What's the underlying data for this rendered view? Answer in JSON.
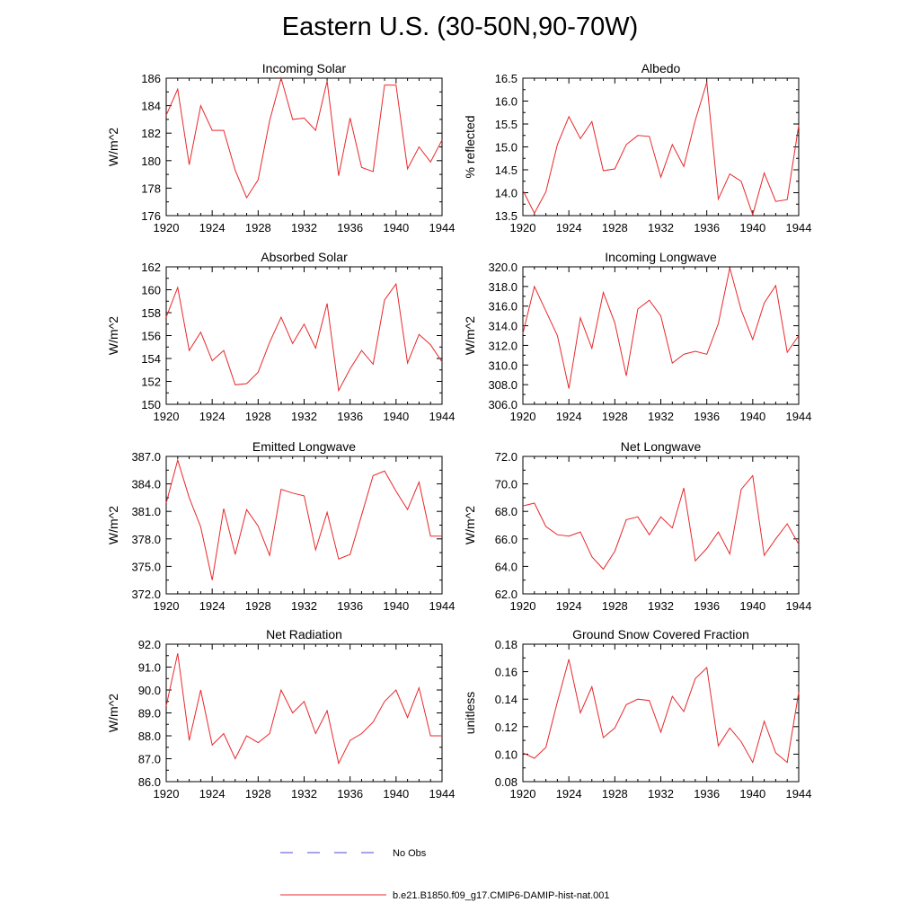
{
  "title": "Eastern U.S. (30-50N,90-70W)",
  "legend": [
    {
      "label": "No Obs",
      "color": "#4b4bd6",
      "style": "dashed"
    },
    {
      "label": "b.e21.B1850.f09_g17.CMIP6-DAMIP-hist-nat.001",
      "color": "#e8282b",
      "style": "solid"
    }
  ],
  "chart_data": [
    {
      "type": "line",
      "title": "Incoming Solar",
      "ylabel": "W/m^2",
      "xlim": [
        1920,
        1944
      ],
      "xticks": [
        "1920",
        "1924",
        "1928",
        "1932",
        "1936",
        "1940",
        "1944"
      ],
      "ylim": [
        176,
        186
      ],
      "yticks": [
        "176",
        "178",
        "180",
        "182",
        "184",
        "186"
      ],
      "x": [
        1920,
        1921,
        1922,
        1923,
        1924,
        1925,
        1926,
        1927,
        1928,
        1929,
        1930,
        1931,
        1932,
        1933,
        1934,
        1935,
        1936,
        1937,
        1938,
        1939,
        1940,
        1941,
        1942,
        1943,
        1944
      ],
      "series": [
        {
          "name": "b.e21.B1850.f09_g17.CMIP6-DAMIP-hist-nat.001",
          "color": "#e8282b",
          "values": [
            183.3,
            185.2,
            179.7,
            184.0,
            182.2,
            182.2,
            179.3,
            177.3,
            178.6,
            182.9,
            186.0,
            183.0,
            183.1,
            182.2,
            185.8,
            178.9,
            183.1,
            179.5,
            179.2,
            185.5,
            185.5,
            179.4,
            181.0,
            179.9,
            181.5
          ]
        }
      ]
    },
    {
      "type": "line",
      "title": "Albedo",
      "ylabel": "% reflected",
      "xlim": [
        1920,
        1944
      ],
      "xticks": [
        "1920",
        "1924",
        "1928",
        "1932",
        "1936",
        "1940",
        "1944"
      ],
      "ylim": [
        13.5,
        16.5
      ],
      "yticks": [
        "13.5",
        "14.0",
        "14.5",
        "15.0",
        "15.5",
        "16.0",
        "16.5"
      ],
      "x": [
        1920,
        1921,
        1922,
        1923,
        1924,
        1925,
        1926,
        1927,
        1928,
        1929,
        1930,
        1931,
        1932,
        1933,
        1934,
        1935,
        1936,
        1937,
        1938,
        1939,
        1940,
        1941,
        1942,
        1943,
        1944
      ],
      "series": [
        {
          "name": "b.e21.B1850.f09_g17.CMIP6-DAMIP-hist-nat.001",
          "color": "#e8282b",
          "values": [
            14.05,
            13.55,
            14.02,
            15.05,
            15.66,
            15.18,
            15.55,
            14.48,
            14.52,
            15.05,
            15.25,
            15.23,
            14.34,
            15.05,
            14.57,
            15.58,
            16.41,
            13.86,
            14.41,
            14.25,
            13.52,
            14.43,
            13.81,
            13.85,
            15.47
          ]
        }
      ]
    },
    {
      "type": "line",
      "title": "Absorbed Solar",
      "ylabel": "W/m^2",
      "xlim": [
        1920,
        1944
      ],
      "xticks": [
        "1920",
        "1924",
        "1928",
        "1932",
        "1936",
        "1940",
        "1944"
      ],
      "ylim": [
        150,
        162
      ],
      "yticks": [
        "150",
        "152",
        "154",
        "156",
        "158",
        "160",
        "162"
      ],
      "x": [
        1920,
        1921,
        1922,
        1923,
        1924,
        1925,
        1926,
        1927,
        1928,
        1929,
        1930,
        1931,
        1932,
        1933,
        1934,
        1935,
        1936,
        1937,
        1938,
        1939,
        1940,
        1941,
        1942,
        1943,
        1944
      ],
      "series": [
        {
          "name": "b.e21.B1850.f09_g17.CMIP6-DAMIP-hist-nat.001",
          "color": "#e8282b",
          "values": [
            157.6,
            160.2,
            154.7,
            156.3,
            153.8,
            154.7,
            151.7,
            151.8,
            152.8,
            155.4,
            157.6,
            155.3,
            157.0,
            154.9,
            158.8,
            151.2,
            153.1,
            154.7,
            153.5,
            159.1,
            160.5,
            153.6,
            156.1,
            155.2,
            153.7
          ]
        }
      ]
    },
    {
      "type": "line",
      "title": "Incoming Longwave",
      "ylabel": "W/m^2",
      "xlim": [
        1920,
        1944
      ],
      "xticks": [
        "1920",
        "1924",
        "1928",
        "1932",
        "1936",
        "1940",
        "1944"
      ],
      "ylim": [
        306.0,
        320.0
      ],
      "yticks": [
        "306.0",
        "308.0",
        "310.0",
        "312.0",
        "314.0",
        "316.0",
        "318.0",
        "320.0"
      ],
      "x": [
        1920,
        1921,
        1922,
        1923,
        1924,
        1925,
        1926,
        1927,
        1928,
        1929,
        1930,
        1931,
        1932,
        1933,
        1934,
        1935,
        1936,
        1937,
        1938,
        1939,
        1940,
        1941,
        1942,
        1943,
        1944
      ],
      "series": [
        {
          "name": "b.e21.B1850.f09_g17.CMIP6-DAMIP-hist-nat.001",
          "color": "#e8282b",
          "values": [
            313.2,
            318.0,
            315.5,
            313.0,
            307.6,
            314.8,
            311.7,
            317.4,
            314.3,
            308.9,
            315.7,
            316.6,
            315.0,
            310.2,
            311.1,
            311.4,
            311.1,
            314.2,
            319.9,
            315.6,
            312.6,
            316.3,
            318.1,
            311.3,
            313.0
          ]
        }
      ]
    },
    {
      "type": "line",
      "title": "Emitted Longwave",
      "ylabel": "W/m^2",
      "xlim": [
        1920,
        1944
      ],
      "xticks": [
        "1920",
        "1924",
        "1928",
        "1932",
        "1936",
        "1940",
        "1944"
      ],
      "ylim": [
        372.0,
        387.0
      ],
      "yticks": [
        "372.0",
        "375.0",
        "378.0",
        "381.0",
        "384.0",
        "387.0"
      ],
      "x": [
        1920,
        1921,
        1922,
        1923,
        1924,
        1925,
        1926,
        1927,
        1928,
        1929,
        1930,
        1931,
        1932,
        1933,
        1934,
        1935,
        1936,
        1937,
        1938,
        1939,
        1940,
        1941,
        1942,
        1943,
        1944
      ],
      "series": [
        {
          "name": "b.e21.B1850.f09_g17.CMIP6-DAMIP-hist-nat.001",
          "color": "#e8282b",
          "values": [
            381.9,
            386.6,
            382.5,
            379.3,
            373.5,
            381.3,
            376.3,
            381.2,
            379.4,
            376.2,
            383.4,
            383.0,
            382.7,
            376.8,
            380.9,
            375.8,
            376.3,
            380.6,
            384.9,
            385.4,
            383.2,
            381.2,
            384.2,
            378.3,
            378.3
          ]
        }
      ]
    },
    {
      "type": "line",
      "title": "Net Longwave",
      "ylabel": "W/m^2",
      "xlim": [
        1920,
        1944
      ],
      "xticks": [
        "1920",
        "1924",
        "1928",
        "1932",
        "1936",
        "1940",
        "1944"
      ],
      "ylim": [
        62.0,
        72.0
      ],
      "yticks": [
        "62.0",
        "64.0",
        "66.0",
        "68.0",
        "70.0",
        "72.0"
      ],
      "x": [
        1920,
        1921,
        1922,
        1923,
        1924,
        1925,
        1926,
        1927,
        1928,
        1929,
        1930,
        1931,
        1932,
        1933,
        1934,
        1935,
        1936,
        1937,
        1938,
        1939,
        1940,
        1941,
        1942,
        1943,
        1944
      ],
      "series": [
        {
          "name": "b.e21.B1850.f09_g17.CMIP6-DAMIP-hist-nat.001",
          "color": "#e8282b",
          "values": [
            68.4,
            68.6,
            66.9,
            66.3,
            66.2,
            66.5,
            64.7,
            63.8,
            65.1,
            67.4,
            67.6,
            66.3,
            67.6,
            66.8,
            69.7,
            64.4,
            65.3,
            66.5,
            64.9,
            69.6,
            70.6,
            64.8,
            66.0,
            67.1,
            65.6
          ]
        }
      ]
    },
    {
      "type": "line",
      "title": "Net Radiation",
      "ylabel": "W/m^2",
      "xlim": [
        1920,
        1944
      ],
      "xticks": [
        "1920",
        "1924",
        "1928",
        "1932",
        "1936",
        "1940",
        "1944"
      ],
      "ylim": [
        86.0,
        92.0
      ],
      "yticks": [
        "86.0",
        "87.0",
        "88.0",
        "89.0",
        "90.0",
        "91.0",
        "92.0"
      ],
      "x": [
        1920,
        1921,
        1922,
        1923,
        1924,
        1925,
        1926,
        1927,
        1928,
        1929,
        1930,
        1931,
        1932,
        1933,
        1934,
        1935,
        1936,
        1937,
        1938,
        1939,
        1940,
        1941,
        1942,
        1943,
        1944
      ],
      "series": [
        {
          "name": "b.e21.B1850.f09_g17.CMIP6-DAMIP-hist-nat.001",
          "color": "#e8282b",
          "values": [
            89.3,
            91.6,
            87.8,
            90.0,
            87.6,
            88.1,
            87.0,
            88.0,
            87.7,
            88.1,
            90.0,
            89.0,
            89.5,
            88.1,
            89.1,
            86.8,
            87.8,
            88.1,
            88.6,
            89.5,
            90.0,
            88.8,
            90.1,
            88.0,
            88.0
          ]
        }
      ]
    },
    {
      "type": "line",
      "title": "Ground Snow Covered Fraction",
      "ylabel": "unitless",
      "xlim": [
        1920,
        1944
      ],
      "xticks": [
        "1920",
        "1924",
        "1928",
        "1932",
        "1936",
        "1940",
        "1944"
      ],
      "ylim": [
        0.08,
        0.18
      ],
      "yticks": [
        "0.08",
        "0.10",
        "0.12",
        "0.14",
        "0.16",
        "0.18"
      ],
      "x": [
        1920,
        1921,
        1922,
        1923,
        1924,
        1925,
        1926,
        1927,
        1928,
        1929,
        1930,
        1931,
        1932,
        1933,
        1934,
        1935,
        1936,
        1937,
        1938,
        1939,
        1940,
        1941,
        1942,
        1943,
        1944
      ],
      "series": [
        {
          "name": "b.e21.B1850.f09_g17.CMIP6-DAMIP-hist-nat.001",
          "color": "#e8282b",
          "values": [
            0.101,
            0.097,
            0.105,
            0.138,
            0.169,
            0.13,
            0.149,
            0.112,
            0.119,
            0.136,
            0.14,
            0.139,
            0.116,
            0.142,
            0.131,
            0.155,
            0.163,
            0.106,
            0.119,
            0.109,
            0.094,
            0.124,
            0.101,
            0.094,
            0.145
          ]
        }
      ]
    }
  ]
}
